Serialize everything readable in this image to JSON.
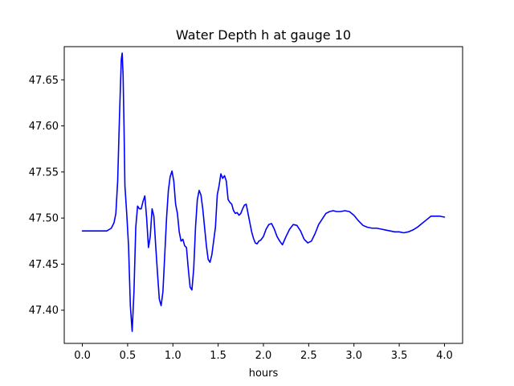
{
  "chart_data": {
    "type": "line",
    "title": "Water Depth h at gauge 10",
    "xlabel": "hours",
    "ylabel": "",
    "xlim": [
      -0.2,
      4.2
    ],
    "ylim": [
      47.364,
      47.686
    ],
    "xticks": [
      0.0,
      0.5,
      1.0,
      1.5,
      2.0,
      2.5,
      3.0,
      3.5,
      4.0
    ],
    "xtick_labels": [
      "0.0",
      "0.5",
      "1.0",
      "1.5",
      "2.0",
      "2.5",
      "3.0",
      "3.5",
      "4.0"
    ],
    "yticks": [
      47.4,
      47.45,
      47.5,
      47.55,
      47.6,
      47.65
    ],
    "ytick_labels": [
      "47.40",
      "47.45",
      "47.50",
      "47.55",
      "47.60",
      "47.65"
    ],
    "grid": false,
    "series": [
      {
        "color": "#0000ff",
        "x": [
          0.0,
          0.1,
          0.2,
          0.27,
          0.32,
          0.35,
          0.37,
          0.39,
          0.41,
          0.43,
          0.44,
          0.45,
          0.46,
          0.47,
          0.49,
          0.51,
          0.53,
          0.55,
          0.57,
          0.59,
          0.61,
          0.63,
          0.65,
          0.67,
          0.69,
          0.71,
          0.73,
          0.75,
          0.77,
          0.79,
          0.81,
          0.83,
          0.85,
          0.87,
          0.89,
          0.91,
          0.93,
          0.95,
          0.97,
          0.99,
          1.01,
          1.03,
          1.05,
          1.07,
          1.09,
          1.11,
          1.13,
          1.15,
          1.17,
          1.19,
          1.21,
          1.23,
          1.25,
          1.27,
          1.29,
          1.31,
          1.33,
          1.35,
          1.37,
          1.39,
          1.41,
          1.43,
          1.45,
          1.47,
          1.49,
          1.51,
          1.53,
          1.55,
          1.57,
          1.59,
          1.61,
          1.63,
          1.65,
          1.67,
          1.69,
          1.71,
          1.73,
          1.75,
          1.77,
          1.79,
          1.81,
          1.83,
          1.85,
          1.87,
          1.89,
          1.91,
          1.93,
          1.95,
          1.97,
          2.0,
          2.03,
          2.06,
          2.09,
          2.12,
          2.15,
          2.18,
          2.21,
          2.25,
          2.29,
          2.33,
          2.37,
          2.41,
          2.45,
          2.49,
          2.53,
          2.57,
          2.61,
          2.65,
          2.69,
          2.73,
          2.77,
          2.81,
          2.85,
          2.9,
          2.95,
          3.0,
          3.05,
          3.1,
          3.15,
          3.2,
          3.25,
          3.3,
          3.35,
          3.4,
          3.45,
          3.5,
          3.55,
          3.6,
          3.65,
          3.7,
          3.75,
          3.8,
          3.85,
          3.9,
          3.95,
          4.0
        ],
        "y": [
          47.486,
          47.486,
          47.486,
          47.486,
          47.489,
          47.495,
          47.505,
          47.54,
          47.61,
          47.672,
          47.679,
          47.655,
          47.6,
          47.535,
          47.505,
          47.47,
          47.405,
          47.377,
          47.42,
          47.49,
          47.513,
          47.51,
          47.51,
          47.518,
          47.524,
          47.5,
          47.468,
          47.48,
          47.51,
          47.502,
          47.47,
          47.44,
          47.412,
          47.405,
          47.42,
          47.46,
          47.5,
          47.53,
          47.545,
          47.551,
          47.54,
          47.515,
          47.505,
          47.485,
          47.475,
          47.477,
          47.47,
          47.468,
          47.445,
          47.425,
          47.422,
          47.445,
          47.49,
          47.52,
          47.53,
          47.525,
          47.51,
          47.49,
          47.47,
          47.455,
          47.452,
          47.46,
          47.475,
          47.49,
          47.525,
          47.535,
          47.548,
          47.543,
          47.546,
          47.54,
          47.52,
          47.517,
          47.515,
          47.508,
          47.505,
          47.506,
          47.503,
          47.505,
          47.51,
          47.514,
          47.515,
          47.505,
          47.495,
          47.485,
          47.478,
          47.473,
          47.472,
          47.475,
          47.476,
          47.48,
          47.488,
          47.493,
          47.494,
          47.488,
          47.48,
          47.475,
          47.471,
          47.48,
          47.488,
          47.493,
          47.492,
          47.486,
          47.477,
          47.473,
          47.475,
          47.483,
          47.493,
          47.499,
          47.505,
          47.507,
          47.508,
          47.507,
          47.507,
          47.508,
          47.507,
          47.503,
          47.497,
          47.492,
          47.49,
          47.489,
          47.489,
          47.488,
          47.487,
          47.486,
          47.485,
          47.485,
          47.484,
          47.485,
          47.487,
          47.49,
          47.494,
          47.498,
          47.502,
          47.502,
          47.502,
          47.501
        ]
      }
    ]
  }
}
